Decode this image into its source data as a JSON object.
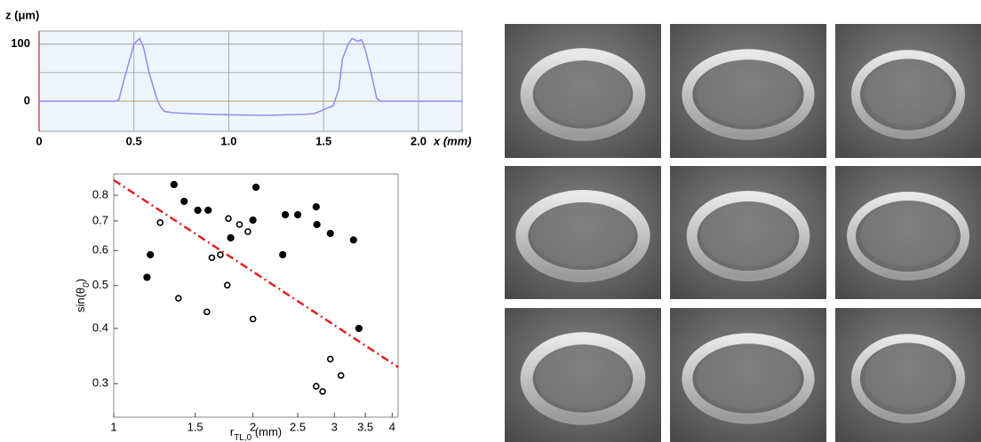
{
  "chart_data": [
    {
      "type": "line",
      "ylabel": "z (μm)",
      "xlabel": "x (mm)",
      "x": [
        0,
        0.4,
        0.42,
        0.45,
        0.5,
        0.53,
        0.55,
        0.58,
        0.62,
        0.64,
        0.66,
        0.7,
        0.8,
        1.0,
        1.2,
        1.4,
        1.45,
        1.5,
        1.55,
        1.58,
        1.6,
        1.63,
        1.65,
        1.68,
        1.7,
        1.72,
        1.75,
        1.78,
        1.8,
        2.23
      ],
      "values": [
        0,
        0,
        2,
        40,
        100,
        110,
        95,
        50,
        5,
        -10,
        -18,
        -20,
        -22,
        -24,
        -25,
        -23,
        -22,
        -15,
        -8,
        20,
        75,
        100,
        110,
        105,
        108,
        90,
        50,
        5,
        0,
        0
      ],
      "color": "#8c8cf2",
      "background": "#eef5fc",
      "xlim": [
        0,
        2.23
      ],
      "xticks": [
        0,
        0.5,
        {
          "value": 1.0,
          "label": "1.0"
        },
        1.5,
        {
          "value": 2.0,
          "label": "2.0"
        }
      ],
      "ylim": [
        -53,
        123
      ],
      "yticks": [
        0,
        100
      ],
      "ygrid": [
        50
      ],
      "grid": true
    },
    {
      "type": "scatter",
      "log_x": true,
      "log_y": true,
      "ylabel": {
        "main": "sin(θ",
        "sub": "0",
        "end": ")"
      },
      "xlabel": {
        "main": "r",
        "sub": "TL,0",
        "end": " (mm)"
      },
      "xlim": [
        1,
        4.12
      ],
      "xticks": [
        1,
        1.5,
        2,
        2.5,
        3,
        3.5,
        4
      ],
      "ylim": [
        0.252,
        0.894
      ],
      "yticks": [
        0.3,
        0.4,
        0.5,
        0.6,
        0.7,
        0.8
      ],
      "series": [
        {
          "marker": "filled",
          "color": "#000000",
          "x": [
            1.18,
            1.2,
            1.35,
            1.42,
            1.52,
            1.6,
            1.79,
            2.03,
            2.0,
            2.32,
            2.35,
            2.5,
            2.74,
            2.75,
            2.94,
            3.3,
            3.39
          ],
          "values": [
            0.522,
            0.587,
            0.846,
            0.775,
            0.74,
            0.74,
            0.641,
            0.834,
            0.703,
            0.587,
            0.723,
            0.723,
            0.753,
            0.687,
            0.656,
            0.634,
            0.4
          ]
        },
        {
          "marker": "open",
          "color": "#000000",
          "x": [
            1.26,
            1.38,
            1.63,
            1.59,
            1.7,
            1.77,
            1.87,
            1.95,
            1.76,
            2.0,
            2.94,
            3.1,
            2.74,
            2.83
          ],
          "values": [
            0.694,
            0.468,
            0.578,
            0.436,
            0.587,
            0.709,
            0.687,
            0.662,
            0.501,
            0.42,
            0.341,
            0.313,
            0.296,
            0.288
          ]
        },
        {
          "marker": "dash-dot-line",
          "color": "#e02020",
          "x": [
            1,
            4.12
          ],
          "values": [
            0.866,
            0.327
          ]
        }
      ]
    }
  ]
}
